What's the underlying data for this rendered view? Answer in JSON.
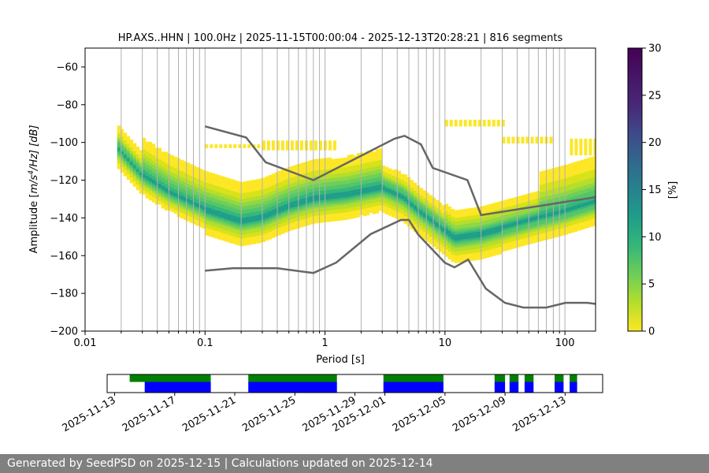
{
  "chart_data": {
    "type": "heatmap",
    "title": "HP.AXS..HHN | 100.0Hz | 2025-11-15T00:00:04 - 2025-12-13T20:28:21 | 816 segments",
    "xlabel": "Period [s]",
    "ylabel": "Amplitude [m²/s⁴/Hz] [dB]",
    "ylabel_parts": {
      "prefix": "Amplitude [",
      "m": "m",
      "s": "/s",
      "exp": "4",
      "hz": "/Hz] [dB]"
    },
    "x_scale": "log",
    "xlim": [
      0.01,
      180
    ],
    "ylim": [
      -200,
      -50
    ],
    "x_tick_labels": [
      "0.01",
      "0.1",
      "1",
      "10",
      "100"
    ],
    "y_tick_labels": [
      "−60",
      "−80",
      "−100",
      "−120",
      "−140",
      "−160",
      "−180",
      "−200"
    ],
    "colorbar": {
      "label": "[%]",
      "range": [
        0,
        30
      ],
      "tick_labels": [
        "0",
        "5",
        "10",
        "15",
        "20",
        "25",
        "30"
      ]
    },
    "density_mode": [
      {
        "period": 0.019,
        "db": -103
      },
      {
        "period": 0.03,
        "db": -117
      },
      {
        "period": 0.05,
        "db": -126
      },
      {
        "period": 0.1,
        "db": -135
      },
      {
        "period": 0.2,
        "db": -141
      },
      {
        "period": 0.3,
        "db": -139
      },
      {
        "period": 0.5,
        "db": -133
      },
      {
        "period": 0.8,
        "db": -129
      },
      {
        "period": 1.5,
        "db": -127
      },
      {
        "period": 3.0,
        "db": -123
      },
      {
        "period": 4.5,
        "db": -128
      },
      {
        "period": 6.0,
        "db": -135
      },
      {
        "period": 8.0,
        "db": -141
      },
      {
        "period": 12,
        "db": -150
      },
      {
        "period": 20,
        "db": -148
      },
      {
        "period": 50,
        "db": -141
      },
      {
        "period": 100,
        "db": -136
      },
      {
        "period": 180,
        "db": -131
      }
    ],
    "nhnm": [
      {
        "period": 0.1,
        "db": -91.5
      },
      {
        "period": 0.22,
        "db": -97.4
      },
      {
        "period": 0.32,
        "db": -110.5
      },
      {
        "period": 0.8,
        "db": -120
      },
      {
        "period": 3.8,
        "db": -98
      },
      {
        "period": 4.6,
        "db": -96.5
      },
      {
        "period": 6.3,
        "db": -101
      },
      {
        "period": 7.9,
        "db": -113.5
      },
      {
        "period": 15.4,
        "db": -120
      },
      {
        "period": 20,
        "db": -138.5
      },
      {
        "period": 180,
        "db": -129
      }
    ],
    "nlnm": [
      {
        "period": 0.1,
        "db": -168
      },
      {
        "period": 0.17,
        "db": -166.7
      },
      {
        "period": 0.4,
        "db": -166.7
      },
      {
        "period": 0.8,
        "db": -169.2
      },
      {
        "period": 1.24,
        "db": -163.7
      },
      {
        "period": 2.4,
        "db": -148.6
      },
      {
        "period": 4.3,
        "db": -141.1
      },
      {
        "period": 5.0,
        "db": -141.1
      },
      {
        "period": 6.0,
        "db": -149
      },
      {
        "period": 10,
        "db": -163.8
      },
      {
        "period": 12,
        "db": -166.2
      },
      {
        "period": 15.6,
        "db": -162.1
      },
      {
        "period": 21.9,
        "db": -177.5
      },
      {
        "period": 31.6,
        "db": -185
      },
      {
        "period": 45,
        "db": -187.5
      },
      {
        "period": 70,
        "db": -187.5
      },
      {
        "period": 101,
        "db": -185
      },
      {
        "period": 154,
        "db": -185
      },
      {
        "period": 180,
        "db": -185.6
      }
    ],
    "timeline": {
      "range_days": [
        -0.5,
        32.5
      ],
      "date_labels": [
        "2025-11-13",
        "2025-11-17",
        "2025-11-21",
        "2025-11-25",
        "2025-11-29",
        "2025-12-01",
        "2025-12-05",
        "2025-12-09",
        "2025-12-13"
      ],
      "date_day_offsets": [
        0,
        4,
        8,
        12,
        16,
        18,
        22,
        26,
        30
      ],
      "data_segments": [
        [
          1.0,
          6.4
        ],
        [
          8.9,
          14.8
        ],
        [
          17.9,
          21.9
        ],
        [
          25.3,
          26.0
        ],
        [
          26.3,
          26.9
        ],
        [
          27.3,
          27.9
        ],
        [
          29.3,
          29.9
        ],
        [
          30.3,
          30.8
        ]
      ],
      "used_segments": [
        [
          2.0,
          6.4
        ],
        [
          8.9,
          14.8
        ],
        [
          17.9,
          21.9
        ],
        [
          25.3,
          26.0
        ],
        [
          26.3,
          26.9
        ],
        [
          27.3,
          27.9
        ],
        [
          29.3,
          29.9
        ],
        [
          30.3,
          30.8
        ]
      ],
      "data_color": "#008000",
      "used_color": "#0000ff"
    }
  },
  "colors": {
    "nm_lines": "#666666",
    "grid": "#b0b0b0"
  },
  "footer": {
    "text": "Generated by SeedPSD on 2025-12-15 | Calculations updated on 2025-12-14"
  }
}
